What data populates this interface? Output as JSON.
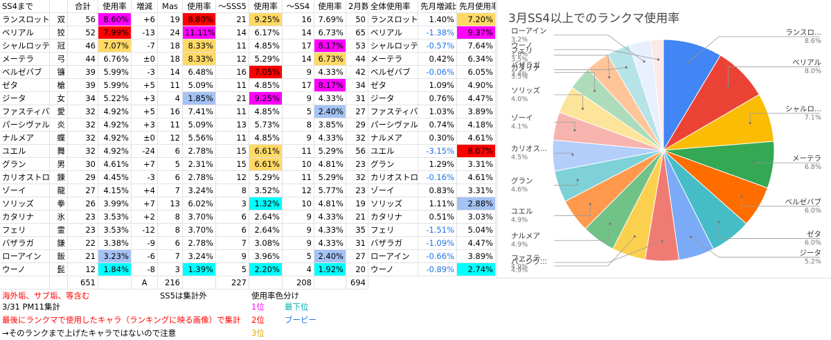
{
  "table": {
    "headers": [
      "SS4まで",
      "",
      "合計",
      "使用率",
      "増減",
      "Mas",
      "使用率",
      "〜SSS5",
      "使用率",
      "〜SS4",
      "使用率",
      "2月数",
      "全体使用率",
      "先月増減比",
      "先月使用率"
    ],
    "rows": [
      [
        "ランスロット",
        "双",
        "56",
        "8.60%",
        "+6",
        "19",
        "8.80%",
        "21",
        "9.25%",
        "16",
        "7.69%",
        "50",
        "ランスロット",
        "1.40%",
        "7.20%"
      ],
      [
        "ベリアル",
        "狡",
        "52",
        "7.99%",
        "-13",
        "24",
        "11.11%",
        "14",
        "6.17%",
        "14",
        "6.73%",
        "65",
        "ベリアル",
        "-1.38%",
        "9.37%"
      ],
      [
        "シャルロッテ",
        "冠",
        "46",
        "7.07%",
        "-7",
        "18",
        "8.33%",
        "11",
        "4.85%",
        "17",
        "8.17%",
        "53",
        "シャルロッテ",
        "-0.57%",
        "7.64%"
      ],
      [
        "メーテラ",
        "弓",
        "44",
        "6.76%",
        "±0",
        "18",
        "8.33%",
        "12",
        "5.29%",
        "14",
        "6.73%",
        "44",
        "メーテラ",
        "0.42%",
        "6.34%"
      ],
      [
        "ベルゼバブ",
        "镰",
        "39",
        "5.99%",
        "-3",
        "14",
        "6.48%",
        "16",
        "7.05%",
        "9",
        "4.33%",
        "42",
        "ベルゼバブ",
        "-0.06%",
        "6.05%"
      ],
      [
        "ゼタ",
        "槍",
        "39",
        "5.99%",
        "+5",
        "11",
        "5.09%",
        "11",
        "4.85%",
        "17",
        "8.17%",
        "34",
        "ゼタ",
        "1.09%",
        "4.90%"
      ],
      [
        "ジータ",
        "女",
        "34",
        "5.22%",
        "+3",
        "4",
        "1.85%",
        "21",
        "9.25%",
        "9",
        "4.33%",
        "31",
        "ジータ",
        "0.76%",
        "4.47%"
      ],
      [
        "ファスティバ",
        "愛",
        "32",
        "4.92%",
        "+5",
        "16",
        "7.41%",
        "11",
        "4.85%",
        "5",
        "2.40%",
        "27",
        "ファスティバ",
        "1.03%",
        "3.89%"
      ],
      [
        "パーシヴァル",
        "炎",
        "32",
        "4.92%",
        "+3",
        "11",
        "5.09%",
        "13",
        "5.73%",
        "8",
        "3.85%",
        "29",
        "パーシヴァル",
        "0.74%",
        "4.18%"
      ],
      [
        "ナルメア",
        "蝶",
        "32",
        "4.92%",
        "±0",
        "12",
        "5.56%",
        "11",
        "4.85%",
        "9",
        "4.33%",
        "32",
        "ナルメア",
        "0.30%",
        "4.61%"
      ],
      [
        "ユエル",
        "舞",
        "32",
        "4.92%",
        "-24",
        "6",
        "2.78%",
        "15",
        "6.61%",
        "11",
        "5.29%",
        "56",
        "ユエル",
        "-3.15%",
        "8.07%"
      ],
      [
        "グラン",
        "男",
        "30",
        "4.61%",
        "+7",
        "5",
        "2.31%",
        "15",
        "6.61%",
        "10",
        "4.81%",
        "23",
        "グラン",
        "1.29%",
        "3.31%"
      ],
      [
        "カリオストロ",
        "錬",
        "29",
        "4.45%",
        "-3",
        "6",
        "2.78%",
        "12",
        "5.29%",
        "11",
        "5.29%",
        "32",
        "カリオストロ",
        "-0.16%",
        "4.61%"
      ],
      [
        "ゾーイ",
        "龍",
        "27",
        "4.15%",
        "+4",
        "7",
        "3.24%",
        "8",
        "3.52%",
        "12",
        "5.77%",
        "23",
        "ゾーイ",
        "0.83%",
        "3.31%"
      ],
      [
        "ソリッズ",
        "拳",
        "26",
        "3.99%",
        "+7",
        "13",
        "6.02%",
        "3",
        "1.32%",
        "10",
        "4.81%",
        "19",
        "ソリッズ",
        "1.11%",
        "2.88%"
      ],
      [
        "カタリナ",
        "氷",
        "23",
        "3.53%",
        "+2",
        "8",
        "3.70%",
        "6",
        "2.64%",
        "9",
        "4.33%",
        "21",
        "カタリナ",
        "0.51%",
        "3.03%"
      ],
      [
        "フェリ",
        "霊",
        "23",
        "3.53%",
        "-12",
        "8",
        "3.70%",
        "6",
        "2.64%",
        "9",
        "4.33%",
        "35",
        "フェリ",
        "-1.51%",
        "5.04%"
      ],
      [
        "バザラガ",
        "鎌",
        "22",
        "3.38%",
        "-9",
        "6",
        "2.78%",
        "7",
        "3.08%",
        "9",
        "4.33%",
        "31",
        "バザラガ",
        "-1.09%",
        "4.47%"
      ],
      [
        "ローアイン",
        "飯",
        "21",
        "3.23%",
        "-6",
        "7",
        "3.24%",
        "9",
        "3.96%",
        "5",
        "2.40%",
        "27",
        "ローアイン",
        "-0.66%",
        "3.89%"
      ],
      [
        "ウーノ",
        "髭",
        "12",
        "1.84%",
        "-8",
        "3",
        "1.39%",
        "5",
        "2.20%",
        "4",
        "1.92%",
        "20",
        "ウーノ",
        "-0.89%",
        "2.74%"
      ]
    ],
    "totals": {
      "sum": "651",
      "a": "A",
      "mas": "216",
      "sss5": "227",
      "ss4": "208",
      "feb": "694"
    }
  },
  "colors": {
    "first": "#ff00ff",
    "second": "#ff0000",
    "third": "#ffd966",
    "last": "#00ffff",
    "last_text": "#1a73e8",
    "negative": "#1a73e8",
    "note_red": "#ff0000"
  },
  "highlights": [
    [
      "#ff00ff",
      "#ff0000",
      "#ffd966",
      "",
      "#ff00ff",
      "#ff0000",
      "#ffd966"
    ],
    [
      "#ff0000",
      "#ff00ff",
      "",
      "",
      "#ffd966",
      "",
      "#ff00ff"
    ],
    [
      "#ffd966",
      "#ffd966",
      "",
      "#ff00ff",
      "",
      "",
      ""
    ],
    [
      "",
      "#ffd966",
      "",
      "#ffd966",
      "",
      "",
      ""
    ],
    [
      "",
      "",
      "#ff0000",
      "",
      "",
      "",
      ""
    ],
    [
      "",
      "",
      "",
      "#ff00ff",
      "",
      "",
      ""
    ],
    [
      "",
      "#a4c2f4",
      "#ff00ff",
      "",
      "",
      "",
      ""
    ],
    [
      "",
      "",
      "",
      "#a4c2f4",
      "",
      "",
      ""
    ],
    [
      "",
      "",
      "",
      "",
      "",
      "",
      ""
    ],
    [
      "",
      "",
      "",
      "",
      "",
      "",
      ""
    ],
    [
      "",
      "",
      "#ffd966",
      "",
      "",
      "",
      "#ff0000"
    ],
    [
      "",
      "",
      "#ffd966",
      "",
      "",
      "",
      ""
    ],
    [
      "",
      "",
      "",
      "",
      "",
      "",
      ""
    ],
    [
      "",
      "",
      "",
      "",
      "",
      "",
      ""
    ],
    [
      "",
      "",
      "#00ffff",
      "",
      "",
      "",
      "#a4c2f4"
    ],
    [
      "",
      "",
      "",
      "",
      "",
      "",
      ""
    ],
    [
      "",
      "",
      "",
      "",
      "",
      "",
      ""
    ],
    [
      "",
      "",
      "",
      "",
      "",
      "",
      ""
    ],
    [
      "#a4c2f4",
      "",
      "",
      "#a4c2f4",
      "",
      "",
      ""
    ],
    [
      "#00ffff",
      "#00ffff",
      "#00ffff",
      "#00ffff",
      "",
      "",
      "#00ffff"
    ]
  ],
  "notes": {
    "note1": "海外垢、サブ垢、等含む",
    "note2": "3/31 PM11集計",
    "note3": "最後にランクマで使用したキャラ（ランキングに映る画像）で集計",
    "note4": "→そのランクまで上げたキャラではないので注意",
    "ss5_note": "SS5は集計外",
    "color_label": "使用率色分け",
    "rank1": "1位",
    "rank2": "2位",
    "rank3": "3位",
    "rank_last": "最下位",
    "rank_booby": "ブービー"
  },
  "chart_data": {
    "type": "pie",
    "title": "3月SS4以上でのランクマ使用率",
    "slices": [
      {
        "label": "ランスロ...",
        "value": 8.6,
        "value_label": "8.6%",
        "color": "#4285f4"
      },
      {
        "label": "ベリアル",
        "value": 8.0,
        "value_label": "8.0%",
        "color": "#ea4335"
      },
      {
        "label": "シャルロ...",
        "value": 7.1,
        "value_label": "7.1%",
        "color": "#fbbc04"
      },
      {
        "label": "メーテラ",
        "value": 6.8,
        "value_label": "6.8%",
        "color": "#34a853"
      },
      {
        "label": "ベルゼバブ",
        "value": 6.0,
        "value_label": "6.0%",
        "color": "#ff6d01"
      },
      {
        "label": "ゼタ",
        "value": 6.0,
        "value_label": "6.0%",
        "color": "#46bdc6"
      },
      {
        "label": "ジータ",
        "value": 5.2,
        "value_label": "5.2%",
        "color": "#7baaf7"
      },
      {
        "label": "ファステ...",
        "value": 4.9,
        "value_label": "4.9%",
        "color": "#f07b72"
      },
      {
        "label": "パーシヴ...",
        "value": 4.9,
        "value_label": "4.9%",
        "color": "#fcd04f"
      },
      {
        "label": "ナルメア",
        "value": 4.9,
        "value_label": "4.9%",
        "color": "#71c287"
      },
      {
        "label": "ユエル",
        "value": 4.9,
        "value_label": "4.9%",
        "color": "#ff994d"
      },
      {
        "label": "グラン",
        "value": 4.6,
        "value_label": "4.6%",
        "color": "#7ed1d7"
      },
      {
        "label": "カリオス...",
        "value": 4.5,
        "value_label": "4.5%",
        "color": "#b3cefb"
      },
      {
        "label": "ゾーイ",
        "value": 4.1,
        "value_label": "4.1%",
        "color": "#f7b4ae"
      },
      {
        "label": "ソリッズ",
        "value": 4.0,
        "value_label": "4.0%",
        "color": "#fde49b"
      },
      {
        "label": "カタリナ",
        "value": 3.5,
        "value_label": "3.5%",
        "color": "#aedcba"
      },
      {
        "label": "フェリ",
        "value": 3.5,
        "value_label": "3.5%",
        "color": "#ffc599"
      },
      {
        "label": "バザラガ",
        "value": 3.4,
        "value_label": "3.4%",
        "color": "#b6e3e7"
      },
      {
        "label": "ローアイン",
        "value": 3.2,
        "value_label": "3.2%",
        "color": "#e8f0fe"
      },
      {
        "label": "ウーノ",
        "value": 1.8,
        "value_label": "1.8%",
        "color": "#fce8e6"
      }
    ]
  }
}
